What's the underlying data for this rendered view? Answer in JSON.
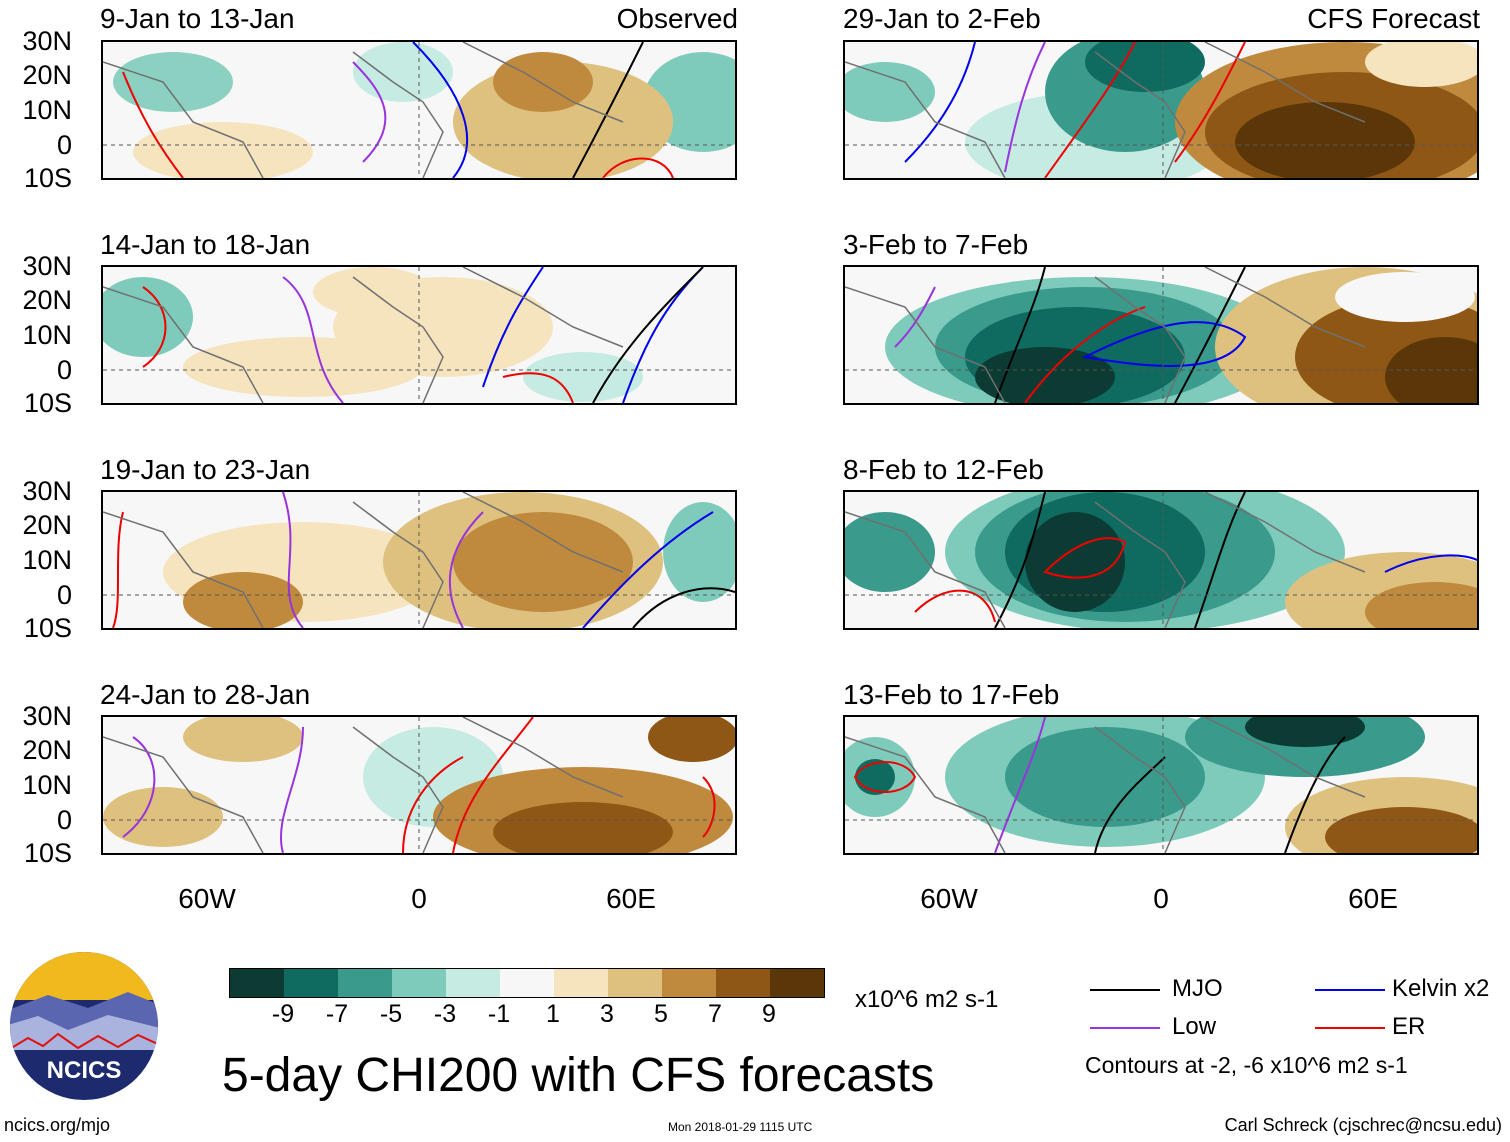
{
  "columns": [
    {
      "label": "Observed"
    },
    {
      "label": "CFS Forecast"
    }
  ],
  "panels": [
    {
      "col": 0,
      "row": 0,
      "title": "9-Jan to 13-Jan"
    },
    {
      "col": 0,
      "row": 1,
      "title": "14-Jan to 18-Jan"
    },
    {
      "col": 0,
      "row": 2,
      "title": "19-Jan to 23-Jan"
    },
    {
      "col": 0,
      "row": 3,
      "title": "24-Jan to 28-Jan"
    },
    {
      "col": 1,
      "row": 0,
      "title": "29-Jan to 2-Feb"
    },
    {
      "col": 1,
      "row": 1,
      "title": "3-Feb to 7-Feb"
    },
    {
      "col": 1,
      "row": 2,
      "title": "8-Feb to 12-Feb"
    },
    {
      "col": 1,
      "row": 3,
      "title": "13-Feb to 17-Feb"
    }
  ],
  "axes": {
    "lat_labels": [
      "30N",
      "20N",
      "10N",
      "0",
      "10S"
    ],
    "lon_labels": [
      "60W",
      "0",
      "60E"
    ]
  },
  "colorbar": {
    "colors": [
      "#0b3b33",
      "#0f6a60",
      "#3a9a8c",
      "#7fcbbb",
      "#c6ebe2",
      "#f7f7f7",
      "#f6e4bf",
      "#dfc17f",
      "#c08a3e",
      "#8f5715",
      "#5b3608"
    ],
    "labels": [
      "-9",
      "-7",
      "-5",
      "-3",
      "-1",
      "1",
      "3",
      "5",
      "7",
      "9"
    ],
    "units": "x10^6 m2 s-1"
  },
  "legend": {
    "items": [
      {
        "name": "MJO",
        "color": "#000000"
      },
      {
        "name": "Kelvin x2",
        "color": "#0000ee"
      },
      {
        "name": "Low",
        "color": "#9933dd"
      },
      {
        "name": "ER",
        "color": "#ee0000"
      }
    ],
    "contours_note": "Contours at -2, -6 x10^6 m2 s-1"
  },
  "title": "5-day CHI200 with CFS forecasts",
  "footer": {
    "left": "ncics.org/mjo",
    "center": "Mon 2018-01-29 1115 UTC",
    "right": "Carl Schreck (cjschrec@ncsu.edu)"
  },
  "logo": {
    "text": "NCICS"
  },
  "colors": {
    "mjo": "#000000",
    "kelvin": "#0000ee",
    "low": "#9933dd",
    "er": "#ee0000",
    "land": "#707070"
  }
}
